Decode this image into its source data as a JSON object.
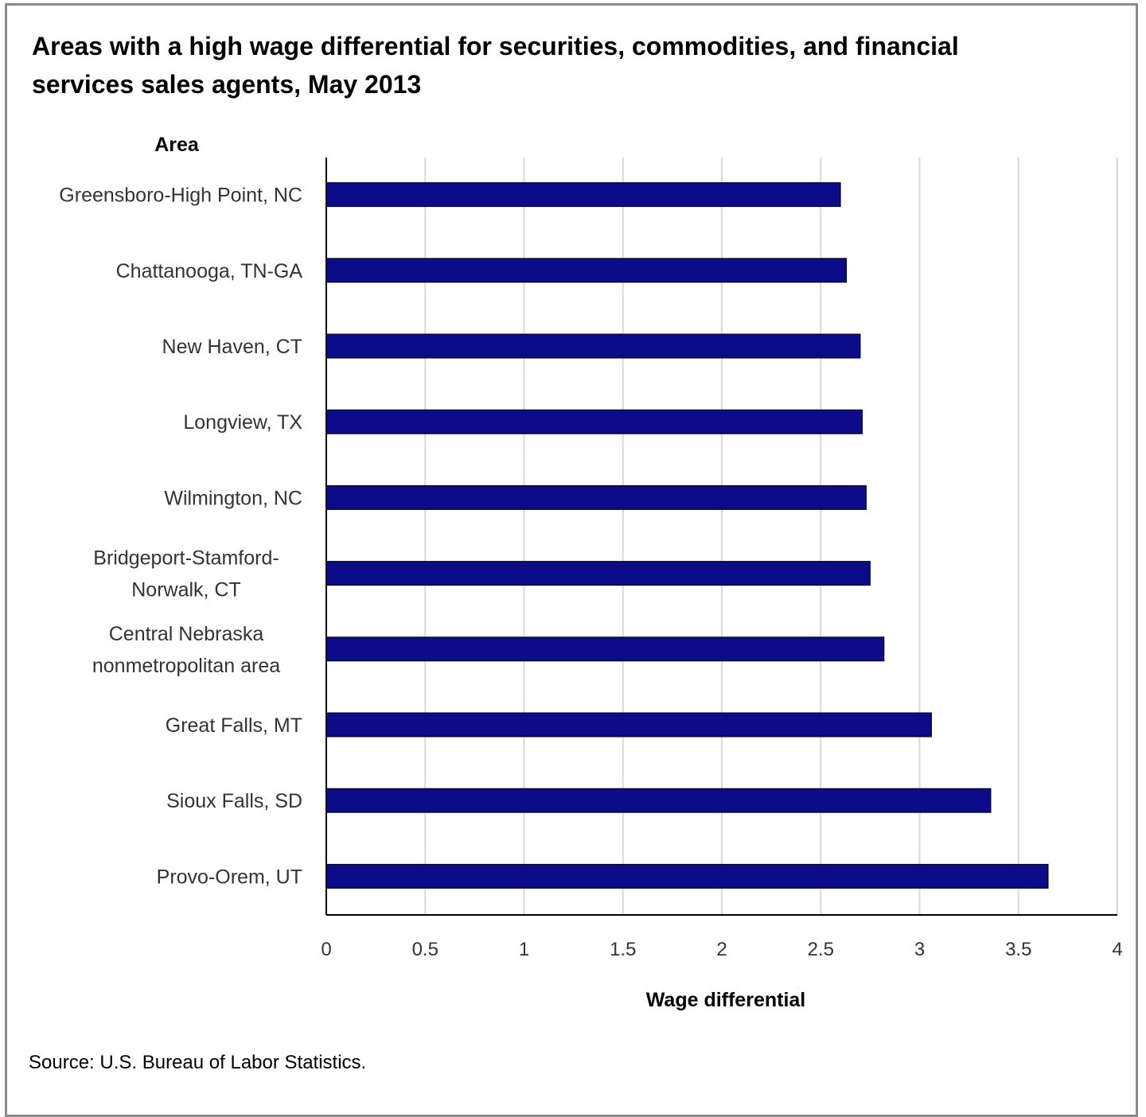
{
  "chart_data": {
    "type": "bar",
    "orientation": "horizontal",
    "title": "Areas with a high wage differential for securities, commodities, and financial services sales agents, May 2013",
    "ylabel": "Area",
    "xlabel": "Wage differential",
    "categories": [
      "Greensboro-High Point, NC",
      "Chattanooga, TN-GA",
      "New Haven, CT",
      "Longview, TX",
      "Wilmington, NC",
      "Bridgeport-Stamford-Norwalk, CT",
      "Central Nebraska nonmetropolitan area",
      "Great Falls, MT",
      "Sioux Falls, SD",
      "Provo-Orem, UT"
    ],
    "category_lines": [
      [
        "Greensboro-High Point, NC"
      ],
      [
        "Chattanooga, TN-GA"
      ],
      [
        "New Haven, CT"
      ],
      [
        "Longview, TX"
      ],
      [
        "Wilmington, NC"
      ],
      [
        "Bridgeport-Stamford-",
        "Norwalk, CT"
      ],
      [
        "Central Nebraska",
        "nonmetropolitan area"
      ],
      [
        "Great Falls, MT"
      ],
      [
        "Sioux Falls, SD"
      ],
      [
        "Provo-Orem, UT"
      ]
    ],
    "values": [
      2.6,
      2.63,
      2.7,
      2.71,
      2.73,
      2.75,
      2.82,
      3.06,
      3.36,
      3.65
    ],
    "xlim": [
      0,
      4
    ],
    "xticks": [
      "0",
      "0.5",
      "1",
      "1.5",
      "2",
      "2.5",
      "3",
      "3.5",
      "4"
    ],
    "xtick_values": [
      0,
      0.5,
      1,
      1.5,
      2,
      2.5,
      3,
      3.5,
      4
    ],
    "grid": true,
    "bar_color": "#0c0c8a",
    "source": "Source: U.S. Bureau of Labor Statistics."
  }
}
